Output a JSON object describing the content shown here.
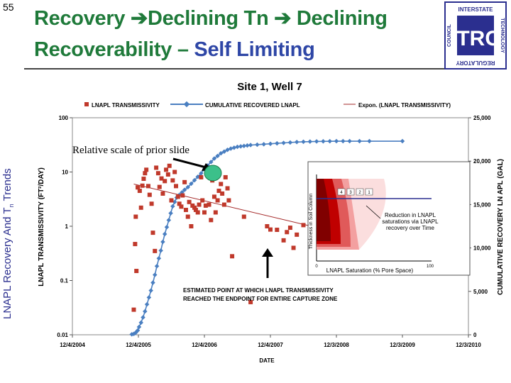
{
  "slide": {
    "number": "55",
    "title_part1": "Recovery ",
    "title_part2": "Declining Tn ",
    "title_part3": " Declining",
    "title_line2a": "Recoverability – ",
    "title_line2b": "Self Limiting",
    "arrow_glyph": "➔",
    "side_label": "LNAPL Recovery And T",
    "side_label_sub": "n",
    "side_label_end": " Trends"
  },
  "logo": {
    "letters": "ITRC",
    "top_text": "INTERSTATE",
    "right_text": "TECHNOLOGY",
    "bottom_text": "REGULATORY",
    "left_text": "COUNCIL"
  },
  "colors": {
    "title_green": "#1f7a3a",
    "title_blue": "#2e46a6",
    "tn_red": "#c0392b",
    "cum_blue": "#4a7fc1",
    "trend_red": "#a52a2a"
  },
  "chart_data": {
    "type": "scatter",
    "title": "Site 1, Well 7",
    "xlabel": "DATE",
    "ylabel": "LNAPL TRANSMISSIVITY (FT²/DAY)",
    "y2label": "CUMULATIVE RECOVERY LN APL (GAL)",
    "x_ticks": [
      "12/4/2004",
      "12/4/2005",
      "12/4/2006",
      "12/4/2007",
      "12/3/2008",
      "12/3/2009",
      "12/3/2010"
    ],
    "xlim_years": [
      0,
      6
    ],
    "y_ticks": [
      "100",
      "10",
      "1",
      "0.1",
      "0.01"
    ],
    "ylim": [
      0.01,
      100
    ],
    "y_scale": "log",
    "y2_ticks": [
      "25,000",
      "20,000",
      "15,000",
      "10,000",
      "5,000",
      "0"
    ],
    "y2lim": [
      0,
      25000
    ],
    "legend": [
      "LNAPL TRANSMISSIVITY",
      "CUMULATIVE RECOVERED LNAPL",
      "Expon. (LNAPL TRANSMISSIVITY)"
    ],
    "series": [
      {
        "name": "LNAPL TRANSMISSIVITY",
        "axis": "left",
        "x": [
          0.93,
          0.95,
          0.96,
          0.97,
          0.99,
          1.02,
          1.04,
          1.06,
          1.08,
          1.1,
          1.12,
          1.15,
          1.17,
          1.2,
          1.22,
          1.25,
          1.27,
          1.3,
          1.32,
          1.35,
          1.37,
          1.4,
          1.42,
          1.45,
          1.47,
          1.5,
          1.52,
          1.55,
          1.57,
          1.6,
          1.62,
          1.65,
          1.67,
          1.7,
          1.72,
          1.75,
          1.77,
          1.8,
          1.82,
          1.85,
          1.87,
          1.9,
          1.92,
          1.95,
          1.97,
          2.0,
          2.02,
          2.05,
          2.07,
          2.1,
          2.12,
          2.15,
          2.17,
          2.2,
          2.22,
          2.25,
          2.27,
          2.3,
          2.32,
          2.35,
          2.37,
          2.42,
          2.6,
          2.7,
          2.95,
          3.0,
          3.1,
          3.2,
          3.25,
          3.3,
          3.35,
          3.4,
          3.5,
          3.6,
          3.7
        ],
        "y": [
          0.029,
          0.47,
          1.5,
          0.15,
          5.2,
          4.5,
          2.2,
          5.6,
          7.5,
          9.5,
          11,
          5.5,
          3.8,
          2.6,
          0.76,
          0.35,
          12,
          9.5,
          5.3,
          7.6,
          4.0,
          6.8,
          11,
          9.0,
          13,
          3.0,
          7.0,
          10,
          5.5,
          3.5,
          2.6,
          2.3,
          3.7,
          6.5,
          2.0,
          1.5,
          2.8,
          1.0,
          2.4,
          2.2,
          2.0,
          1.8,
          2.5,
          8.0,
          3.0,
          1.8,
          2.4,
          10,
          2.5,
          1.3,
          7.0,
          3.5,
          1.8,
          3.0,
          4.5,
          6.0,
          4.0,
          2.5,
          8.0,
          5.0,
          3.0,
          0.28,
          1.5,
          0.04,
          1.0,
          0.87,
          0.86,
          0.55,
          0.78,
          0.94,
          0.4,
          0.7,
          1.05,
          0.62,
          0.61
        ]
      },
      {
        "name": "CUMULATIVE RECOVERED LNAPL",
        "axis": "right",
        "x": [
          0.9,
          0.93,
          0.96,
          0.99,
          1.01,
          1.04,
          1.07,
          1.1,
          1.13,
          1.16,
          1.19,
          1.22,
          1.25,
          1.28,
          1.31,
          1.34,
          1.37,
          1.4,
          1.43,
          1.46,
          1.49,
          1.52,
          1.55,
          1.58,
          1.62,
          1.66,
          1.7,
          1.75,
          1.8,
          1.85,
          1.9,
          1.95,
          2.0,
          2.05,
          2.1,
          2.15,
          2.2,
          2.25,
          2.3,
          2.35,
          2.4,
          2.45,
          2.5,
          2.55,
          2.6,
          2.65,
          2.7,
          2.8,
          2.9,
          3.0,
          3.1,
          3.2,
          3.3,
          3.4,
          3.5,
          3.6,
          3.7,
          3.8,
          3.9,
          4.0,
          4.1,
          4.2,
          4.35,
          4.5,
          5.0
        ],
        "y": [
          50,
          100,
          250,
          500,
          900,
          1400,
          2000,
          2700,
          3500,
          4300,
          5100,
          6000,
          6900,
          7900,
          8800,
          9700,
          10700,
          11600,
          12400,
          13200,
          14000,
          14800,
          15300,
          15800,
          16100,
          16400,
          16700,
          17000,
          17400,
          17800,
          18200,
          18600,
          19100,
          19500,
          19900,
          20300,
          20600,
          20900,
          21100,
          21300,
          21450,
          21550,
          21650,
          21700,
          21750,
          21800,
          21850,
          21900,
          21950,
          22000,
          22050,
          22100,
          22150,
          22200,
          22230,
          22250,
          22270,
          22280,
          22290,
          22300,
          22300,
          22300,
          22300,
          22300,
          22300
        ]
      },
      {
        "name": "Expon. (LNAPL TRANSMISSIVITY)",
        "axis": "left",
        "kind": "trendline",
        "x": [
          0.93,
          3.7
        ],
        "y": [
          6.0,
          0.95
        ]
      }
    ],
    "annotations": {
      "relative_scale": "Relative scale of prior slide",
      "estimated_point_line1": "ESTIMATED POINT AT WHICH LNAPL TRANSMISSIVITY",
      "estimated_point_line2": "REACHED THE ENDPOINT FOR ENTIRE CAPTURE ZONE",
      "inset_ylabel": "Thickness in Soil Column",
      "inset_xlabel": "LNAPL Saturation (% Pore Space)",
      "inset_caption_1": "Reduction in LNAPL",
      "inset_caption_2": "saturations via LNAPL",
      "inset_caption_3": "recovery over Time",
      "inset_x0": "0",
      "inset_x1": "100",
      "inset_boxes": [
        "4",
        "3",
        "2",
        "1"
      ]
    }
  }
}
